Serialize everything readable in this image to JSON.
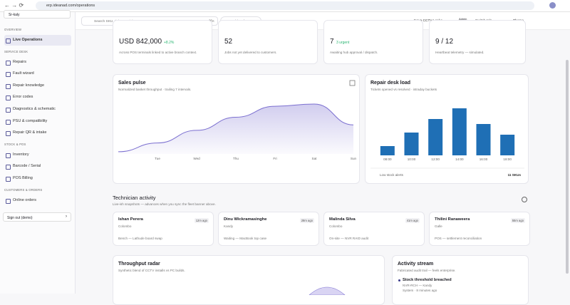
{
  "browser": {
    "url": "erp.ideanad.com/operations"
  },
  "sidebar": {
    "org": "Sr-kaly",
    "sections": [
      {
        "title": "OVERVIEW",
        "items": [
          "Live Operations"
        ]
      },
      {
        "title": "SERVICE DESK",
        "items": [
          "Repairs",
          "Fault wizard",
          "Repair knowledge",
          "Error codes",
          "Diagnostics & schematic",
          "PSU & compatibility",
          "Repair QR & intake"
        ]
      },
      {
        "title": "STOCK & POS",
        "items": [
          "Inventory",
          "Barcode / Serial",
          "POS Billing"
        ]
      },
      {
        "title": "CUSTOMERS & ORDERS",
        "items": [
          "Online orders"
        ]
      }
    ],
    "signout": "Sign out (demo)"
  },
  "topbar": {
    "search": "Search SKU, ticket, serial...",
    "shortcut": "⌘K",
    "sync": "Awaiting demo sync",
    "org": "Nova CCTV Lanka",
    "role": "Admin",
    "user": "Nimal Fernando",
    "switch_role": "Switch role",
    "theme": "Theme"
  },
  "stats": [
    {
      "value": "USD 842,000",
      "badge": "+8.2%",
      "note": "Across POS terminals linked to active branch context."
    },
    {
      "value": "52",
      "note": "Jobs not yet delivered to customers."
    },
    {
      "value": "7",
      "badge": "3 urgent",
      "note": "Awaiting hub approval / dispatch."
    },
    {
      "value": "9 / 12",
      "note": "Heartbeat telemetry — simulated."
    }
  ],
  "chart_data": [
    {
      "type": "area",
      "title": "Sales pulse",
      "subtitle": "Normalized basket throughput · trailing 7 intervals.",
      "categories": [
        null,
        "Tue",
        "Wed",
        "Thu",
        "Fri",
        "Sat",
        "Sun"
      ],
      "values": [
        4,
        20,
        43,
        67,
        87,
        91,
        53
      ],
      "color": "#7b6fd0"
    },
    {
      "type": "bar",
      "title": "Repair desk load",
      "subtitle": "Tickets opened vs resolved · intraday buckets",
      "categories": [
        "08:00",
        "10:00",
        "12:00",
        "14:00",
        "16:00",
        "18:00"
      ],
      "values": [
        13,
        32,
        51,
        66,
        44,
        29
      ],
      "color": "#1f6fb5",
      "footer": {
        "label": "Low stock alerts",
        "value": "11 SKUs"
      }
    }
  ],
  "technicians": {
    "title": "Technician activity",
    "subtitle": "Live-ish snapshots — advances when you sync the fleet banner above.",
    "cards": [
      {
        "name": "Ishan Perera",
        "time": "12m ago",
        "city": "Colombo",
        "status": "Bench — Lathude board swap"
      },
      {
        "name": "Dinu Wickramasinghe",
        "time": "28m ago",
        "city": "Kandy",
        "status": "Waiting — MacBook top case"
      },
      {
        "name": "Malinda Silva",
        "time": "41m ago",
        "city": "Colombo",
        "status": "On-site — NVR RAID audit"
      },
      {
        "name": "Thilini Ranaweera",
        "time": "55m ago",
        "city": "Galle",
        "status": "POS — settlement reconciliation"
      }
    ]
  },
  "radar": {
    "title": "Throughput radar",
    "subtitle": "Synthetic blend of CCTV installs vs PC builds."
  },
  "activity": {
    "title": "Activity stream",
    "subtitle": "Fabricated audit trail — feels enterprise.",
    "items": [
      {
        "title": "Stock threshold breached",
        "detail": "NVR-RCH — Kandy",
        "meta": "System · 8 minutes ago"
      }
    ]
  }
}
